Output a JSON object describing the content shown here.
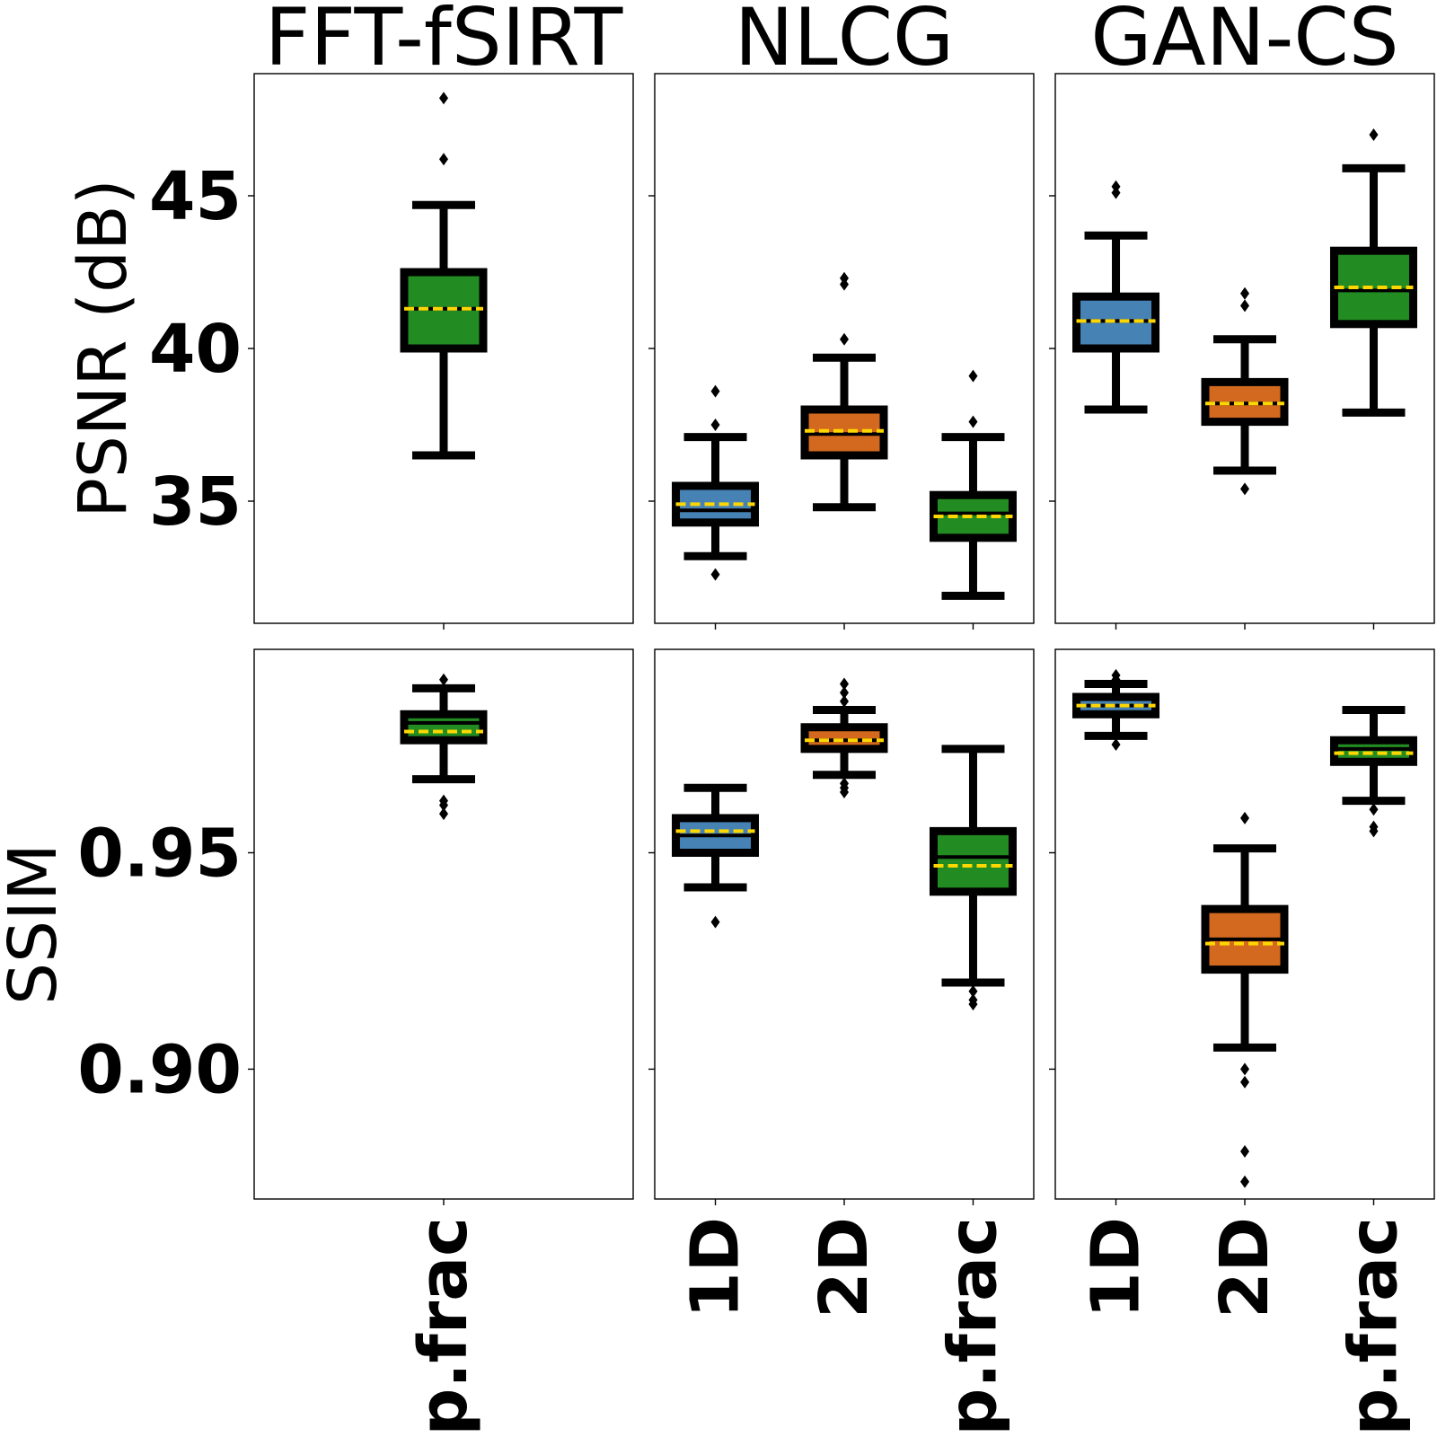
{
  "colors": {
    "1D": "#4682b4",
    "2D": "#d2691e",
    "p.frac": "#228b22",
    "mean_line": "#ffd700",
    "box_edge": "#000000"
  },
  "chart_data": {
    "type": "box",
    "grid": false,
    "columns": [
      {
        "title": "FFT-fSIRT",
        "categories": [
          "p.frac"
        ]
      },
      {
        "title": "NLCG",
        "categories": [
          "1D",
          "2D",
          "p.frac"
        ]
      },
      {
        "title": "GAN-CS",
        "categories": [
          "1D",
          "2D",
          "p.frac"
        ]
      }
    ],
    "rows": [
      {
        "ylabel": "PSNR (dB)",
        "ylim": [
          31.0,
          49.0
        ],
        "yticks": [
          "35",
          "40",
          "45"
        ],
        "boxes": [
          [
            {
              "category": "p.frac",
              "whislo": 36.5,
              "q1": 40.0,
              "med": 41.3,
              "mean": 41.3,
              "q3": 42.5,
              "whishi": 44.7,
              "fliers": [
                46.2,
                48.2
              ]
            }
          ],
          [
            {
              "category": "1D",
              "whislo": 33.2,
              "q1": 34.3,
              "med": 34.7,
              "mean": 34.9,
              "q3": 35.5,
              "whishi": 37.1,
              "fliers": [
                32.6,
                37.5,
                38.6
              ]
            },
            {
              "category": "2D",
              "whislo": 34.8,
              "q1": 36.5,
              "med": 37.2,
              "mean": 37.3,
              "q3": 38.0,
              "whishi": 39.7,
              "fliers": [
                40.3,
                42.1,
                42.3
              ]
            },
            {
              "category": "p.frac",
              "whislo": 31.9,
              "q1": 33.8,
              "med": 34.6,
              "mean": 34.5,
              "q3": 35.2,
              "whishi": 37.1,
              "fliers": [
                37.6,
                39.1
              ]
            }
          ],
          [
            {
              "category": "1D",
              "whislo": 38.0,
              "q1": 40.0,
              "med": 40.9,
              "mean": 40.9,
              "q3": 41.7,
              "whishi": 43.7,
              "fliers": [
                45.1,
                45.3
              ]
            },
            {
              "category": "2D",
              "whislo": 36.0,
              "q1": 37.6,
              "med": 38.2,
              "mean": 38.2,
              "q3": 38.9,
              "whishi": 40.3,
              "fliers": [
                35.4,
                41.4,
                41.8
              ]
            },
            {
              "category": "p.frac",
              "whislo": 37.9,
              "q1": 40.8,
              "med": 41.9,
              "mean": 42.0,
              "q3": 43.2,
              "whishi": 45.9,
              "fliers": [
                47.0
              ]
            }
          ]
        ]
      },
      {
        "ylabel": "SSIM",
        "ylim": [
          0.87,
          0.997
        ],
        "yticks": [
          "0.90",
          "0.95"
        ],
        "boxes": [
          [
            {
              "category": "p.frac",
              "whislo": 0.967,
              "q1": 0.976,
              "med": 0.98,
              "mean": 0.978,
              "q3": 0.982,
              "whishi": 0.988,
              "fliers": [
                0.959,
                0.961,
                0.962,
                0.99
              ]
            }
          ],
          [
            {
              "category": "1D",
              "whislo": 0.942,
              "q1": 0.95,
              "med": 0.954,
              "mean": 0.955,
              "q3": 0.958,
              "whishi": 0.965,
              "fliers": [
                0.934
              ]
            },
            {
              "category": "2D",
              "whislo": 0.968,
              "q1": 0.974,
              "med": 0.976,
              "mean": 0.976,
              "q3": 0.979,
              "whishi": 0.983,
              "fliers": [
                0.964,
                0.965,
                0.966,
                0.985,
                0.987,
                0.989
              ]
            },
            {
              "category": "p.frac",
              "whislo": 0.92,
              "q1": 0.941,
              "med": 0.949,
              "mean": 0.947,
              "q3": 0.955,
              "whishi": 0.974,
              "fliers": [
                0.915,
                0.916,
                0.918
              ]
            }
          ],
          [
            {
              "category": "1D",
              "whislo": 0.977,
              "q1": 0.982,
              "med": 0.984,
              "mean": 0.984,
              "q3": 0.986,
              "whishi": 0.989,
              "fliers": [
                0.975,
                0.99,
                0.991
              ]
            },
            {
              "category": "2D",
              "whislo": 0.905,
              "q1": 0.923,
              "med": 0.93,
              "mean": 0.929,
              "q3": 0.937,
              "whishi": 0.951,
              "fliers": [
                0.874,
                0.881,
                0.897,
                0.9,
                0.958
              ]
            },
            {
              "category": "p.frac",
              "whislo": 0.962,
              "q1": 0.971,
              "med": 0.974,
              "mean": 0.973,
              "q3": 0.976,
              "whishi": 0.983,
              "fliers": [
                0.955,
                0.956,
                0.96
              ]
            }
          ]
        ]
      }
    ]
  }
}
